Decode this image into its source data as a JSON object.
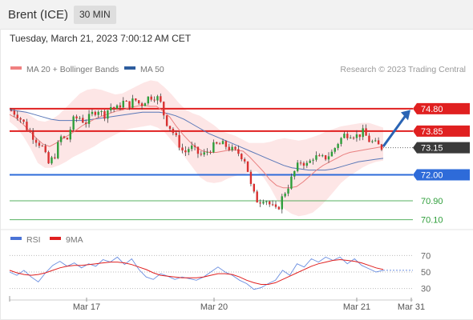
{
  "header": {
    "instrument": "Brent (ICE)",
    "timeframe": "30 MIN",
    "timestamp": "Tuesday, March 21, 2023 7:00:12 AM CET"
  },
  "legend": {
    "items": [
      {
        "label": "MA 20 + Bollinger Bands",
        "color": "#f08080"
      },
      {
        "label": "MA 50",
        "color": "#2e5d9e"
      }
    ],
    "credit": "Research © 2023 Trading Central"
  },
  "rsi_legend": {
    "items": [
      {
        "label": "RSI",
        "color": "#4a73d6"
      },
      {
        "label": "9MA",
        "color": "#e02020"
      }
    ]
  },
  "colors": {
    "up": "#2e9e3a",
    "down": "#d93030",
    "band": "#fde2e2",
    "resistance": "#e02020",
    "support": "#2e6bd9",
    "target": "#2e9e3a",
    "arrow": "#2a64b4",
    "current_tag": "#3a3a3a"
  },
  "chart_data": [
    {
      "type": "candlestick",
      "title": "",
      "x_tick_labels": [
        "Mar 17",
        "Mar 20",
        "Mar 21",
        "Mar 31"
      ],
      "price_levels": [
        {
          "label": "74.80",
          "value": 74.8,
          "kind": "resistance"
        },
        {
          "label": "73.85",
          "value": 73.85,
          "kind": "resistance"
        },
        {
          "label": "73.15",
          "value": 73.15,
          "kind": "current"
        },
        {
          "label": "72.00",
          "value": 72.0,
          "kind": "support"
        },
        {
          "label": "70.90",
          "value": 70.9,
          "kind": "target"
        },
        {
          "label": "70.10",
          "value": 70.1,
          "kind": "target"
        }
      ],
      "ylim": [
        69.85,
        76.15
      ],
      "close_path": [
        74.72,
        74.55,
        74.2,
        73.8,
        73.5,
        73.2,
        72.45,
        72.8,
        73.6,
        73.45,
        74.3,
        74.45,
        74.2,
        74.55,
        74.8,
        74.5,
        74.9,
        74.75,
        75.1,
        74.95,
        75.2,
        74.95,
        75.25,
        75.35,
        75.2,
        74.3,
        73.9,
        73.4,
        72.9,
        73.2,
        72.95,
        72.8,
        73.05,
        73.25,
        73.3,
        73.2,
        73.0,
        72.9,
        72.6,
        71.3,
        70.85,
        71.05,
        70.7,
        70.45,
        71.1,
        71.6,
        72.2,
        72.6,
        72.4,
        72.8,
        72.65,
        72.75,
        72.95,
        73.4,
        73.7,
        73.75,
        73.65,
        73.8,
        73.45,
        73.3,
        73.15
      ],
      "ma20": [
        74.55,
        74.4,
        74.15,
        73.85,
        73.55,
        73.3,
        73.2,
        73.35,
        73.55,
        73.7,
        73.9,
        74.1,
        74.25,
        74.4,
        74.5,
        74.6,
        74.7,
        74.75,
        74.85,
        74.9,
        74.95,
        74.9,
        74.9,
        74.7,
        74.45,
        74.05,
        73.7,
        73.4,
        73.15,
        73.0,
        72.95,
        72.95,
        73.0,
        73.05,
        73.05,
        73.0,
        72.75,
        72.45,
        72.15,
        71.8,
        71.55,
        71.45,
        71.45,
        71.5,
        71.7,
        71.95,
        72.2,
        72.4,
        72.55,
        72.7,
        72.85,
        72.95,
        73.0,
        73.05,
        73.1,
        73.15,
        73.2
      ],
      "bollinger_upper": [
        74.85,
        74.8,
        74.7,
        74.5,
        74.3,
        74.25,
        74.35,
        74.55,
        74.85,
        75.15,
        75.45,
        75.6,
        75.65,
        75.6,
        75.5,
        75.4,
        75.45,
        75.6,
        75.75,
        75.9,
        76.0,
        75.95,
        75.7,
        75.4,
        75.05,
        74.75,
        74.6,
        74.5,
        74.3,
        74.1,
        73.85,
        73.75,
        73.65,
        73.5,
        73.35,
        73.35,
        73.35,
        73.4,
        73.5,
        73.55,
        73.5,
        73.45,
        73.5,
        73.6,
        73.7,
        73.85,
        73.95,
        74.05,
        74.1,
        74.15,
        74.2,
        74.2,
        74.1,
        74.0
      ],
      "bollinger_lower": [
        74.25,
        74.0,
        73.6,
        73.1,
        72.5,
        72.3,
        72.3,
        72.4,
        72.55,
        72.75,
        72.9,
        73.05,
        73.2,
        73.4,
        73.55,
        73.7,
        73.85,
        73.95,
        74.0,
        74.05,
        74.1,
        74.0,
        73.8,
        73.45,
        73.1,
        72.7,
        72.3,
        71.9,
        71.7,
        71.65,
        71.7,
        71.85,
        71.95,
        72.0,
        72.1,
        72.15,
        71.9,
        71.45,
        70.9,
        70.55,
        70.35,
        70.25,
        70.3,
        70.4,
        70.65,
        70.95,
        71.3,
        71.65,
        71.9,
        72.1,
        72.3,
        72.45,
        72.55,
        72.6
      ],
      "ma50": [
        74.75,
        74.7,
        74.65,
        74.55,
        74.45,
        74.35,
        74.3,
        74.3,
        74.3,
        74.3,
        74.35,
        74.4,
        74.45,
        74.5,
        74.55,
        74.6,
        74.65,
        74.65,
        74.65,
        74.6,
        74.5,
        74.35,
        74.15,
        73.95,
        73.75,
        73.6,
        73.45,
        73.3,
        73.15,
        73.0,
        72.85,
        72.7,
        72.55,
        72.4,
        72.3,
        72.25,
        72.2,
        72.2,
        72.2,
        72.25,
        72.35,
        72.45,
        72.55,
        72.6,
        72.65,
        72.7
      ]
    },
    {
      "type": "line",
      "title": "",
      "series": [
        {
          "name": "RSI",
          "values": [
            50,
            46,
            52,
            44,
            38,
            49,
            58,
            63,
            57,
            61,
            55,
            60,
            57,
            65,
            62,
            68,
            59,
            66,
            53,
            44,
            41,
            48,
            45,
            41,
            44,
            42,
            40,
            44,
            50,
            56,
            50,
            46,
            40,
            36,
            29,
            31,
            36,
            40,
            52,
            46,
            60,
            56,
            66,
            62,
            68,
            64,
            68,
            60,
            66,
            58,
            54,
            50,
            52
          ]
        },
        {
          "name": "9MA",
          "values": [
            52,
            49,
            47,
            46,
            47,
            49,
            52,
            55,
            57,
            58,
            58,
            59,
            60,
            61,
            62,
            62,
            61,
            59,
            56,
            53,
            49,
            46,
            45,
            44,
            43,
            43,
            43,
            44,
            46,
            48,
            48,
            47,
            44,
            40,
            37,
            35,
            35,
            37,
            41,
            45,
            49,
            53,
            57,
            60,
            62,
            64,
            65,
            64,
            63,
            61,
            58,
            55,
            53
          ]
        }
      ],
      "y_tick_labels": [
        "70",
        "50",
        "30"
      ],
      "ylim": [
        20,
        80
      ],
      "levels": [
        70,
        50,
        30
      ]
    }
  ]
}
